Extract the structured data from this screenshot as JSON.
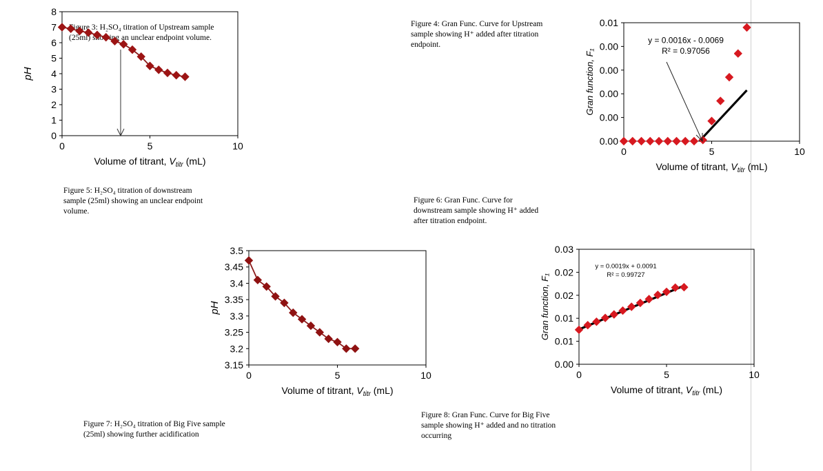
{
  "captions": {
    "fig3": "Figure 3: H₂SO₄ titration of Upstream sample (25ml) showing an unclear endpoint volume.",
    "fig4": "Figure 4: Gran Func. Curve for Upstream sample showing H⁺ added after titration endpoint.",
    "fig5": "Figure 5: H₂SO₄ titration of downstream sample (25ml) showing an unclear endpoint volume.",
    "fig6": "Figure 6: Gran Func. Curve for downstream sample showing H⁺ added after titration endpoint.",
    "fig7": "Figure 7: H₂SO₄ titration of Big Five sample (25ml) showing further acidification",
    "fig8": "Figure 8: Gran Func. Curve for Big Five sample showing H⁺ added and no titration occurring"
  },
  "chart_data": [
    {
      "id": "fig3-chart",
      "type": "line",
      "xlabel": "Volume of titrant, V_titr (mL)",
      "ylabel": "pH",
      "xlim": [
        0,
        10
      ],
      "ylim": [
        0,
        8
      ],
      "xticks": [
        "0",
        "5",
        "10"
      ],
      "yticks": [
        "0",
        "1",
        "2",
        "3",
        "4",
        "5",
        "6",
        "7",
        "8"
      ],
      "series": [
        {
          "x": [
            0,
            0.5,
            1,
            1.5,
            2,
            2.5,
            3,
            3.5,
            4,
            4.5,
            5,
            5.5,
            6,
            6.5,
            7
          ],
          "y": [
            7.0,
            6.9,
            6.75,
            6.65,
            6.5,
            6.35,
            6.1,
            5.9,
            5.55,
            5.1,
            4.5,
            4.25,
            4.05,
            3.9,
            3.8
          ]
        }
      ],
      "annotation_arrow_x": 3.5
    },
    {
      "id": "fig4-chart",
      "type": "scatter",
      "xlabel": "Volume of titrant, V_titr (mL)",
      "ylabel": "Gran function, F₁",
      "xlim": [
        0,
        10
      ],
      "ylim": [
        0,
        0.01
      ],
      "xticks": [
        "0",
        "5",
        "10"
      ],
      "yticks": [
        "0.00",
        "0.00",
        "0.00",
        "0.00",
        "0.00",
        "0.01"
      ],
      "series": [
        {
          "x": [
            0,
            0.5,
            1,
            1.5,
            2,
            2.5,
            3,
            3.5,
            4,
            4.5,
            5,
            5.5,
            6,
            6.5,
            7
          ],
          "y": [
            0,
            0,
            0,
            0,
            0,
            0,
            0,
            0,
            0,
            0.0001,
            0.0017,
            0.0034,
            0.0054,
            0.0074,
            0.0096
          ]
        }
      ],
      "trendline": {
        "slope": 0.0016,
        "intercept": -0.0069,
        "x_from": 4.3,
        "x_to": 7.0
      },
      "equation": "y = 0.0016x - 0.0069",
      "r2": "R² = 0.97056"
    },
    {
      "id": "fig7-chart",
      "type": "line",
      "xlabel": "Volume of titrant, V_titr (mL)",
      "ylabel": "pH",
      "xlim": [
        0,
        10
      ],
      "ylim": [
        3.15,
        3.5
      ],
      "xticks": [
        "0",
        "5",
        "10"
      ],
      "yticks": [
        "3.15",
        "3.2",
        "3.25",
        "3.3",
        "3.35",
        "3.4",
        "3.45",
        "3.5"
      ],
      "series": [
        {
          "x": [
            0,
            0.5,
            1,
            1.5,
            2,
            2.5,
            3,
            3.5,
            4,
            4.5,
            5,
            5.5,
            6
          ],
          "y": [
            3.47,
            3.41,
            3.39,
            3.36,
            3.34,
            3.31,
            3.29,
            3.27,
            3.25,
            3.23,
            3.22,
            3.2,
            3.2
          ]
        }
      ]
    },
    {
      "id": "fig8-chart",
      "type": "scatter",
      "xlabel": "Volume of titrant, V_titr (mL)",
      "ylabel": "Gran function, F₁",
      "xlim": [
        0,
        10
      ],
      "ylim": [
        0,
        0.03
      ],
      "xticks": [
        "0",
        "5",
        "10"
      ],
      "yticks": [
        "0.00",
        "0.01",
        "0.01",
        "0.02",
        "0.02",
        "0.03"
      ],
      "series": [
        {
          "x": [
            0,
            0.5,
            1,
            1.5,
            2,
            2.5,
            3,
            3.5,
            4,
            4.5,
            5,
            5.5,
            6
          ],
          "y": [
            0.009,
            0.0102,
            0.0111,
            0.0121,
            0.013,
            0.014,
            0.015,
            0.016,
            0.017,
            0.0181,
            0.0189,
            0.02,
            0.0201
          ]
        }
      ],
      "trendline": {
        "slope": 0.0019,
        "intercept": 0.0091,
        "x_from": 0,
        "x_to": 6.0
      },
      "equation": "y = 0.0019x + 0.0091",
      "r2": "R² = 0.99727"
    }
  ],
  "colors": {
    "marker": "#c0171b",
    "marker_dark": "#9c1414",
    "line": "#8b1a1a",
    "trend": "#000000"
  }
}
